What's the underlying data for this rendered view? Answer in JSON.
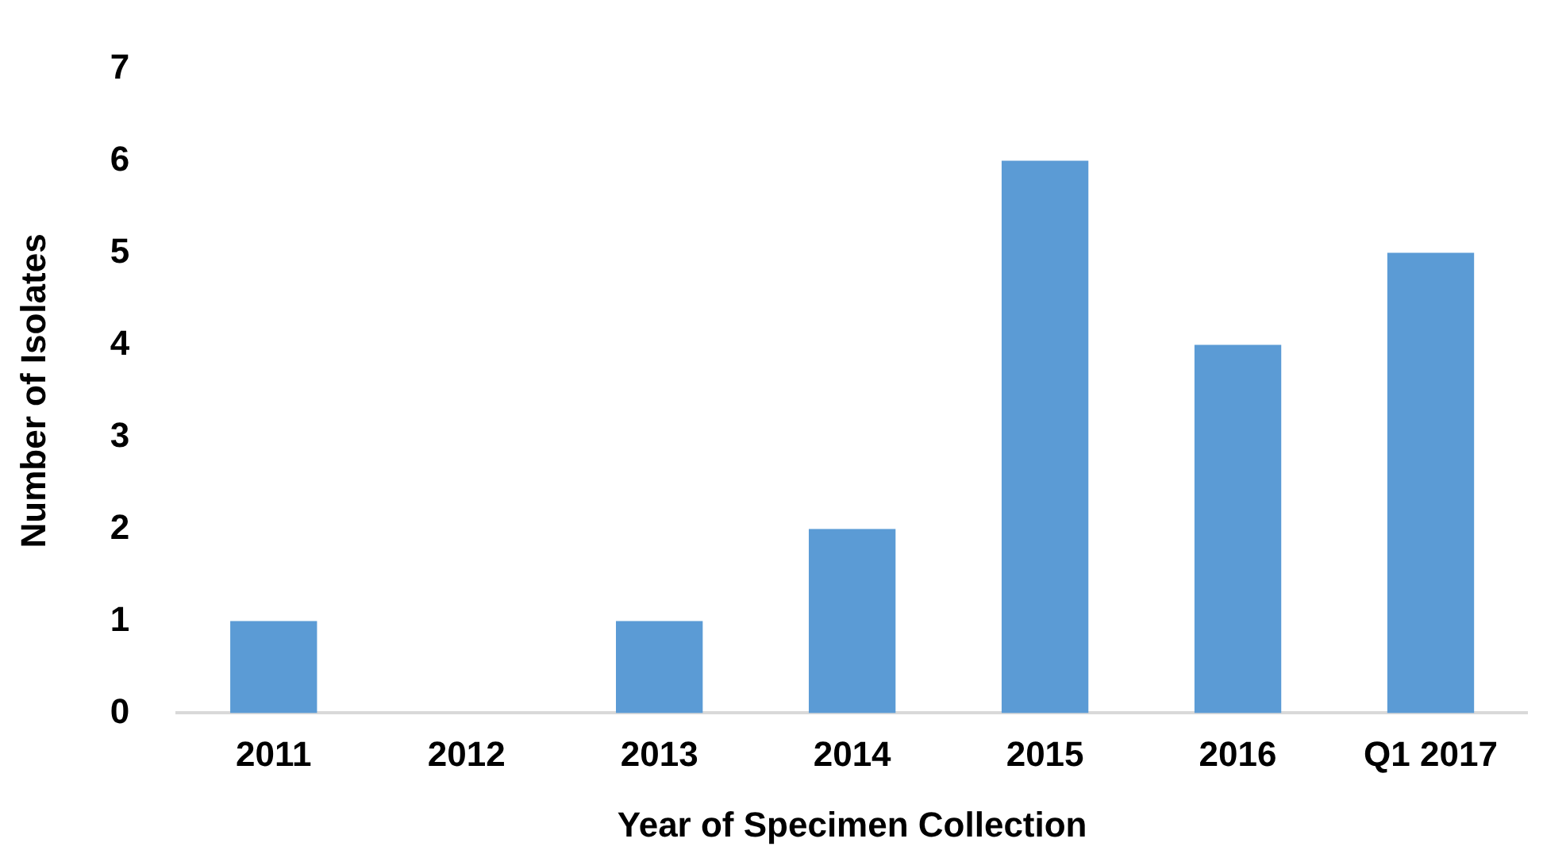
{
  "chart_data": {
    "type": "bar",
    "xlabel": "Year of Specimen Collection",
    "ylabel": "Number of Isolates",
    "categories": [
      "2011",
      "2012",
      "2013",
      "2014",
      "2015",
      "2016",
      "Q1 2017"
    ],
    "values": [
      1,
      0,
      1,
      2,
      6,
      4,
      5
    ],
    "color": "#5b9bd5",
    "ylim": [
      0,
      7
    ],
    "yticks": [
      0,
      1,
      2,
      3,
      4,
      5,
      6,
      7
    ],
    "grid": false,
    "legend": false
  }
}
